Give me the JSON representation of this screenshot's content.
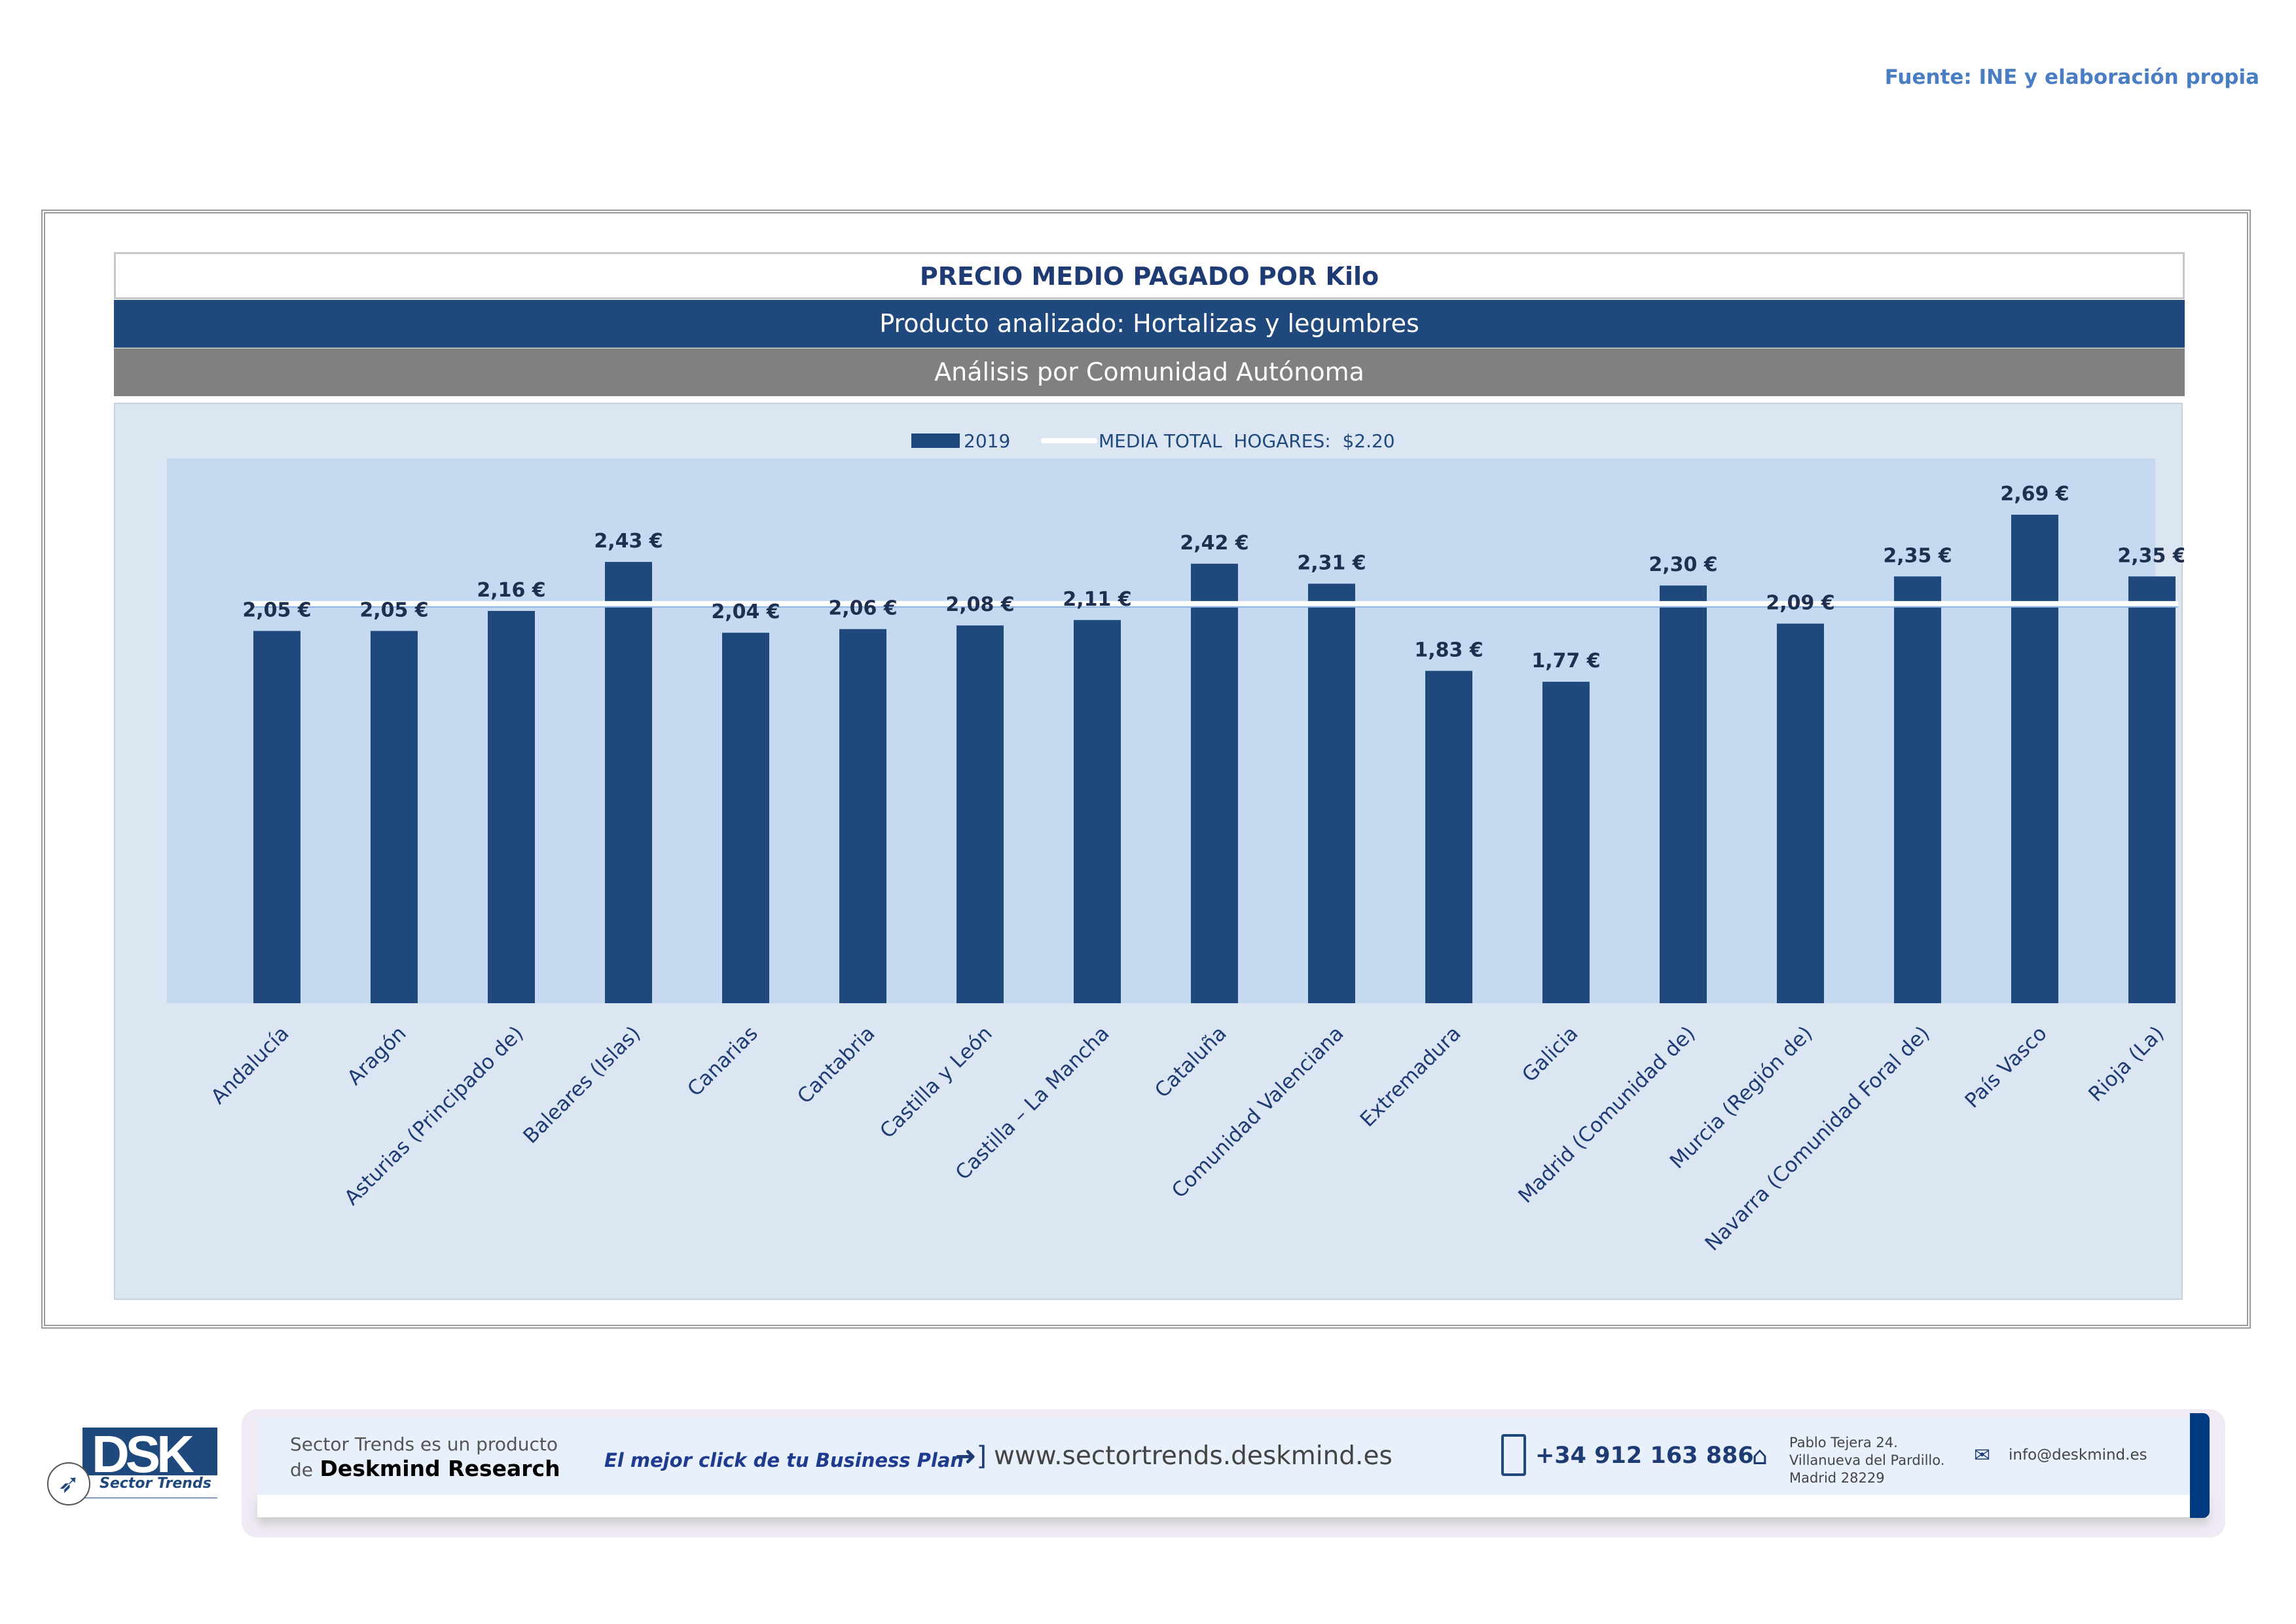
{
  "source": "Fuente: INE y elaboración propia",
  "header": {
    "title": "PRECIO MEDIO PAGADO POR Kilo",
    "product": "Producto analizado: Hortalizas y legumbres",
    "analysis": "Análisis por Comunidad Autónoma"
  },
  "colors": {
    "bar": "#1f497d",
    "plot_bg": "#c5d9f1",
    "chart_bg": "#dce6f2",
    "mean_line": "#ffffff"
  },
  "chart_data": {
    "type": "bar",
    "title": "PRECIO MEDIO PAGADO POR Kilo",
    "categories": [
      "Andalucía",
      "Aragón",
      "Asturias (Principado de)",
      "Baleares (Islas)",
      "Canarias",
      "Cantabria",
      "Castilla y León",
      "Castilla – La Mancha",
      "Cataluña",
      "Comunidad Valenciana",
      "Extremadura",
      "Galicia",
      "Madrid (Comunidad de)",
      "Murcia (Región de)",
      "Navarra (Comunidad Foral de)",
      "País Vasco",
      "Rioja (La)"
    ],
    "series": [
      {
        "name": "2019",
        "values": [
          2.05,
          2.05,
          2.16,
          2.43,
          2.04,
          2.06,
          2.08,
          2.11,
          2.42,
          2.31,
          1.83,
          1.77,
          2.3,
          2.09,
          2.35,
          2.69,
          2.35
        ]
      }
    ],
    "data_labels": [
      "2,05 €",
      "2,05 €",
      "2,16 €",
      "2,43 €",
      "2,04 €",
      "2,06 €",
      "2,08 €",
      "2,11 €",
      "2,42 €",
      "2,31 €",
      "1,83 €",
      "1,77 €",
      "2,30 €",
      "2,09 €",
      "2,35 €",
      "2,69 €",
      "2,35 €"
    ],
    "mean_line": {
      "name": "MEDIA TOTAL  HOGARES:  $2.20",
      "value": 2.2
    },
    "legend": [
      "2019",
      "MEDIA TOTAL  HOGARES:  $2.20"
    ],
    "legend_position": "top",
    "ylim": [
      0,
      3
    ],
    "grid": false,
    "xlabel": "",
    "ylabel": ""
  },
  "footer": {
    "logo_text": "DSK",
    "logo_sub": "Sector Trends",
    "product_line1": "Sector Trends es un producto",
    "product_line2_prefix": "de",
    "product_line2_brand": "Deskmind Research",
    "slogan": "El mejor click de tu Business Plan",
    "website": "www.sectortrends.deskmind.es",
    "phone": "+34 912 163 886",
    "address_line1": "Pablo Tejera 24.",
    "address_line2": "Villanueva del Pardillo.",
    "address_line3": "Madrid 28229",
    "email": "info@deskmind.es"
  }
}
